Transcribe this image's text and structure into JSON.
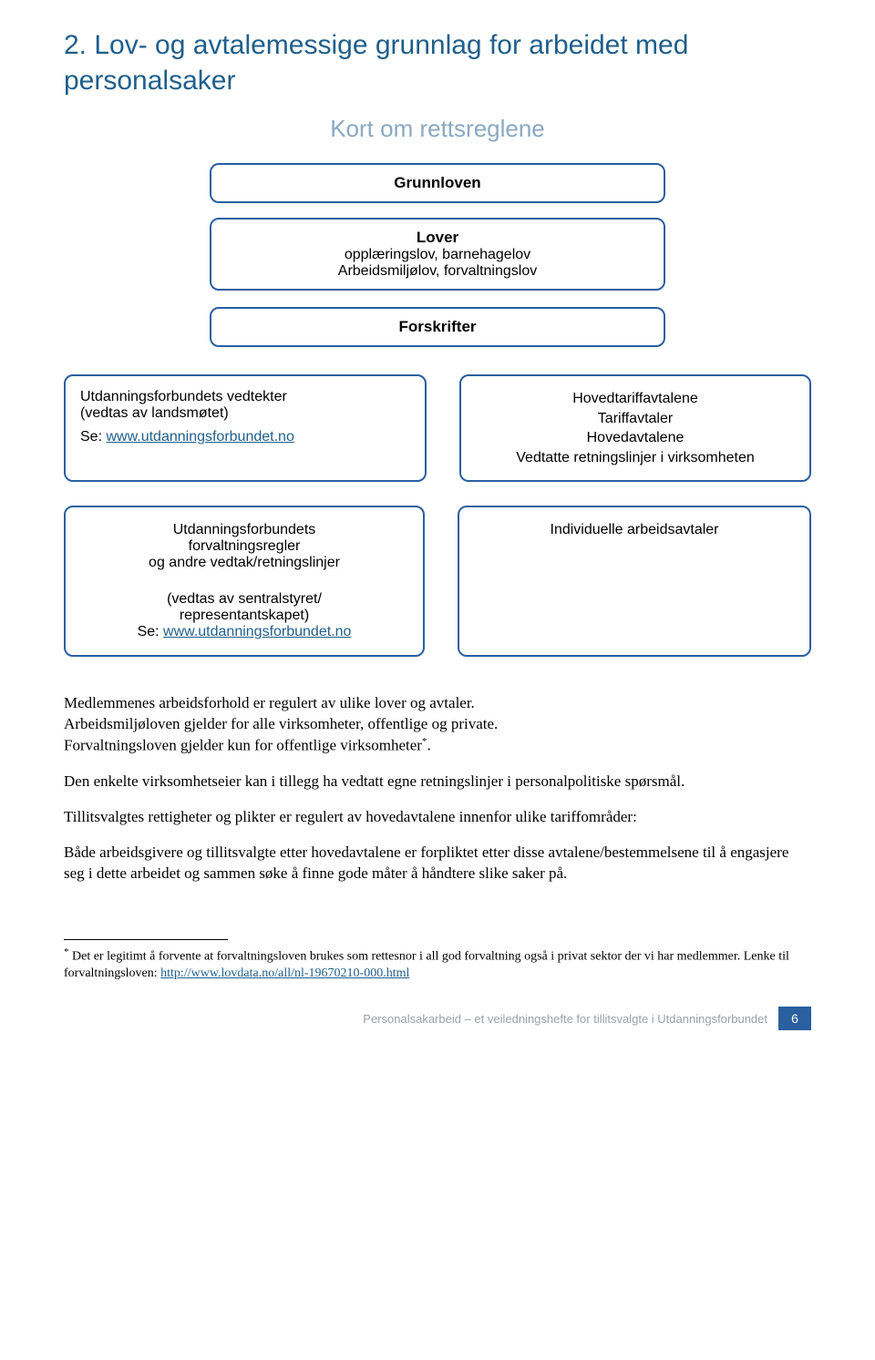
{
  "heading": "2. Lov- og avtalemessige grunnlag for arbeidet med personalsaker",
  "subheading": "Kort om rettsreglene",
  "diagram": {
    "border_color": "#2a5fa0",
    "border_radius": 10,
    "font_family": "Arial",
    "grunnloven": {
      "label": "Grunnloven"
    },
    "lover": {
      "title": "Lover",
      "line1": "opplæringslov, barnehagelov",
      "line2": "Arbeidsmiljølov, forvaltningslov"
    },
    "forskrifter": {
      "label": "Forskrifter"
    },
    "row1": {
      "left": {
        "line1": "Utdanningsforbundets vedtekter",
        "line2": "(vedtas av landsmøtet)",
        "se_prefix": "Se: ",
        "link_text": "www.utdanningsforbundet.no"
      },
      "right": {
        "l1": "Hovedtariffavtalene",
        "l2": "Tariffavtaler",
        "l3": "Hovedavtalene",
        "l4": "Vedtatte retningslinjer i virksomheten"
      }
    },
    "row2": {
      "left": {
        "b1l1": "Utdanningsforbundets",
        "b1l2": "forvaltningsregler",
        "b1l3": "og andre vedtak/retningslinjer",
        "b2l1": "(vedtas av sentralstyret/",
        "b2l2": "representantskapet)",
        "se_prefix": "Se: ",
        "link_text": "www.utdanningsforbundet.no"
      },
      "right": {
        "l1": "Individuelle arbeidsavtaler"
      }
    }
  },
  "paragraphs": {
    "p1a": "Medlemmenes arbeidsforhold er regulert av ulike lover og avtaler.",
    "p1b": "Arbeidsmiljøloven gjelder for alle virksomheter, offentlige og private.",
    "p1c_pre": "Forvaltningsloven gjelder kun for offentlige virksomheter",
    "p1c_post": ".",
    "p2": "Den enkelte virksomhetseier kan i tillegg ha vedtatt egne retningslinjer i personalpolitiske spørsmål.",
    "p3": "Tillitsvalgtes rettigheter og plikter er regulert av hovedavtalene innenfor ulike tariffområder:",
    "p4": "Både arbeidsgivere og tillitsvalgte etter hovedavtalene er forpliktet etter disse avtalene/bestemmelsene til å engasjere seg i dette arbeidet og sammen søke å finne gode måter å håndtere slike saker på."
  },
  "footnote": {
    "star": "*",
    "text_pre": " Det er legitimt å forvente at forvaltningsloven brukes som rettesnor i all god forvaltning også i privat sektor der vi har medlemmer. Lenke til forvaltningsloven: ",
    "link_text": "http://www.lovdata.no/all/nl-19670210-000.html"
  },
  "footer": {
    "text": "Personalsakarbeid – et veiledningshefte for tillitsvalgte i Utdanningsforbundet",
    "page_number": "6"
  },
  "colors": {
    "title_color": "#1f5f8b",
    "subheading_color": "#8aa9c2",
    "link_color": "#1f5f8b",
    "box_border": "#2a5fa0",
    "page_num_bg": "#2a5fa0",
    "footer_text": "#9aa0a6"
  }
}
